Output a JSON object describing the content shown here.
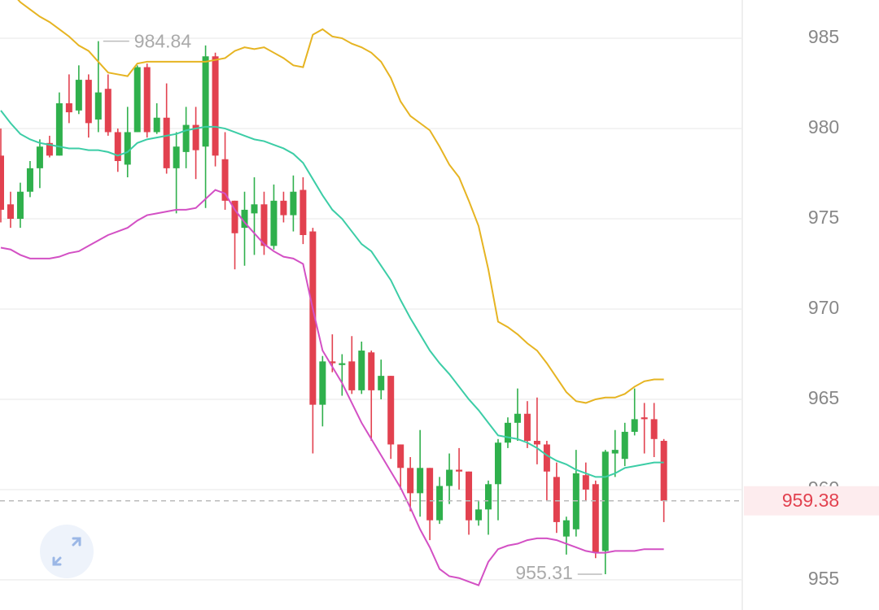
{
  "chart_data": {
    "type": "candlestick",
    "ylim": [
      953.33,
      987.12
    ],
    "yticks": [
      955,
      960,
      965,
      970,
      975,
      980,
      985
    ],
    "grid": true,
    "up_color": "#2fb04c",
    "down_color": "#e2414f",
    "open": [
      978.5,
      975.8,
      975,
      976.5,
      977.8,
      979.2,
      978.5,
      981.4,
      981,
      982.7,
      980.5,
      982.2,
      979.8,
      978,
      979.8,
      983.4,
      979.8,
      980.6,
      977.8,
      978.7,
      980.2,
      979,
      984,
      978.3,
      976,
      974.5,
      975.3,
      975.8,
      973.5,
      976,
      975.2,
      976.6,
      974.3,
      964.7,
      967.1,
      966.9,
      967.1,
      965.5,
      967.6,
      965.5,
      966.3,
      962.5,
      961.2,
      959.8,
      961.2,
      958.3,
      960.2,
      961.1,
      961,
      958.3,
      958.9,
      960.3,
      962.6,
      963.7,
      964.2,
      962.7,
      962.5,
      960.7,
      957.4,
      957.8,
      960.8,
      960.3,
      956.6,
      962,
      961.7,
      963.2,
      964,
      963.9,
      962.7
    ],
    "high": [
      980,
      976.5,
      977,
      978.2,
      979.4,
      979.6,
      982,
      983,
      983.5,
      983,
      984.84,
      983,
      980,
      981.2,
      983.5,
      983.6,
      981.4,
      982.5,
      979.8,
      981.2,
      981.2,
      984.6,
      984.2,
      979.8,
      976,
      976.5,
      977.3,
      976.5,
      976.9,
      976.5,
      977.4,
      977.3,
      974.5,
      967.4,
      968.6,
      967.5,
      968.5,
      968.2,
      967.7,
      967.2,
      966.3,
      962.5,
      961.8,
      963.3,
      961.2,
      960.7,
      962,
      962.3,
      961,
      959.4,
      960.5,
      962.8,
      964,
      965.6,
      964.9,
      965.1,
      962.7,
      961.5,
      958.5,
      962.2,
      961.5,
      960.5,
      962.2,
      963.3,
      963.7,
      965.6,
      964.8,
      964.8,
      962.8
    ],
    "low": [
      974.8,
      974.5,
      974.5,
      976.2,
      976.7,
      978.4,
      978.5,
      980.3,
      980.8,
      979.5,
      979.8,
      979.6,
      977.6,
      977.3,
      979.8,
      979.5,
      979.7,
      977.5,
      975.3,
      977.8,
      977.2,
      975.6,
      977.9,
      975.5,
      972.2,
      972.4,
      973,
      973,
      973.3,
      974.8,
      974.3,
      973.6,
      962,
      963.5,
      966.5,
      965.2,
      965.3,
      965.3,
      962.7,
      965,
      961.7,
      960,
      958.8,
      958.5,
      957.2,
      958.1,
      959.2,
      960,
      957.5,
      958,
      957.5,
      958.3,
      962.3,
      962.7,
      962.3,
      961.4,
      959.4,
      957.6,
      956.4,
      957.4,
      959.4,
      956.2,
      955.31,
      960.7,
      961.3,
      963,
      962,
      961.8,
      958.2
    ],
    "close": [
      975.5,
      975,
      976.5,
      977.8,
      979,
      978.5,
      981.4,
      980.9,
      982.7,
      980.3,
      982,
      979.8,
      978.2,
      979.8,
      983.4,
      979.8,
      980.6,
      977.8,
      979,
      980.2,
      978.8,
      984,
      978.5,
      976,
      974.2,
      975.5,
      975.8,
      973.5,
      976,
      975.2,
      976.5,
      974.1,
      964.7,
      967.1,
      967,
      967,
      965.5,
      967.7,
      965.5,
      966.3,
      962.5,
      961.2,
      959.8,
      961.2,
      958.3,
      960.2,
      961.1,
      961,
      958.3,
      958.9,
      960.3,
      962.6,
      963.7,
      964.2,
      962.7,
      962.5,
      961,
      958.2,
      958.3,
      960.9,
      960,
      956.5,
      962.1,
      962.2,
      963.2,
      963.9,
      963.9,
      962.8,
      959.38
    ],
    "bands": {
      "upper": {
        "color": "#e6b422",
        "values": [
          988,
          987.6,
          987,
          986.6,
          986.2,
          985.9,
          985.5,
          985.1,
          984.6,
          984.3,
          983.7,
          983.1,
          983,
          982.9,
          983.6,
          983.7,
          983.7,
          983.7,
          983.7,
          983.7,
          983.7,
          983.7,
          983.8,
          983.9,
          984.3,
          984.5,
          984.4,
          984.5,
          984.2,
          983.9,
          983.5,
          983.4,
          985.2,
          985.5,
          985.1,
          985,
          984.7,
          984.5,
          984.2,
          983.7,
          982.8,
          981.5,
          980.7,
          980.3,
          979.9,
          979,
          978,
          977.3,
          976,
          974.6,
          972.2,
          969.3,
          969,
          968.6,
          968.1,
          967.7,
          967,
          966.2,
          965.4,
          964.9,
          964.8,
          965,
          965.1,
          965.1,
          965.3,
          965.7,
          966,
          966.1,
          966.1
        ]
      },
      "middle": {
        "color": "#3ccda6",
        "values": [
          981,
          980.3,
          979.7,
          979.4,
          979.2,
          979.1,
          979,
          978.9,
          978.9,
          978.8,
          978.8,
          978.7,
          978.5,
          978.7,
          979.2,
          979.4,
          979.5,
          979.6,
          979.7,
          979.9,
          980,
          980.1,
          980.1,
          980,
          979.8,
          979.6,
          979.4,
          979.3,
          979.1,
          978.9,
          978.6,
          978.1,
          977.2,
          976.3,
          975.5,
          975,
          974.3,
          973.6,
          973.2,
          972.4,
          971.6,
          970.5,
          969.5,
          968.6,
          967.7,
          967,
          966.4,
          965.7,
          965,
          964.4,
          963.7,
          963,
          962.9,
          962.8,
          962.6,
          962.3,
          961.9,
          961.6,
          961.4,
          961.1,
          960.9,
          960.7,
          960.7,
          960.9,
          961.2,
          961.3,
          961.4,
          961.5,
          961.5
        ]
      },
      "lower": {
        "color": "#d350c4",
        "values": [
          973.4,
          973.3,
          973,
          972.8,
          972.8,
          972.8,
          972.9,
          973.1,
          973.2,
          973.5,
          973.8,
          974.1,
          974.3,
          974.5,
          974.9,
          975.2,
          975.3,
          975.4,
          975.5,
          975.5,
          975.6,
          976.1,
          976.6,
          976.4,
          975.5,
          974.8,
          974.2,
          973.6,
          973.2,
          972.9,
          972.8,
          972.5,
          970,
          967.7,
          966.8,
          965.9,
          964.8,
          963.7,
          962.8,
          961.9,
          961,
          960.1,
          959,
          957.8,
          956.8,
          955.6,
          955.2,
          955.1,
          954.9,
          954.7,
          956,
          956.7,
          956.9,
          957,
          957.2,
          957.3,
          957.3,
          957.2,
          957,
          956.8,
          956.6,
          956.5,
          956.5,
          956.6,
          956.6,
          956.6,
          956.7,
          956.7,
          956.7
        ]
      }
    },
    "max_value": 984.84,
    "min_value": 955.31,
    "last_price": 959.38,
    "last_price_color": "#e2414f"
  }
}
